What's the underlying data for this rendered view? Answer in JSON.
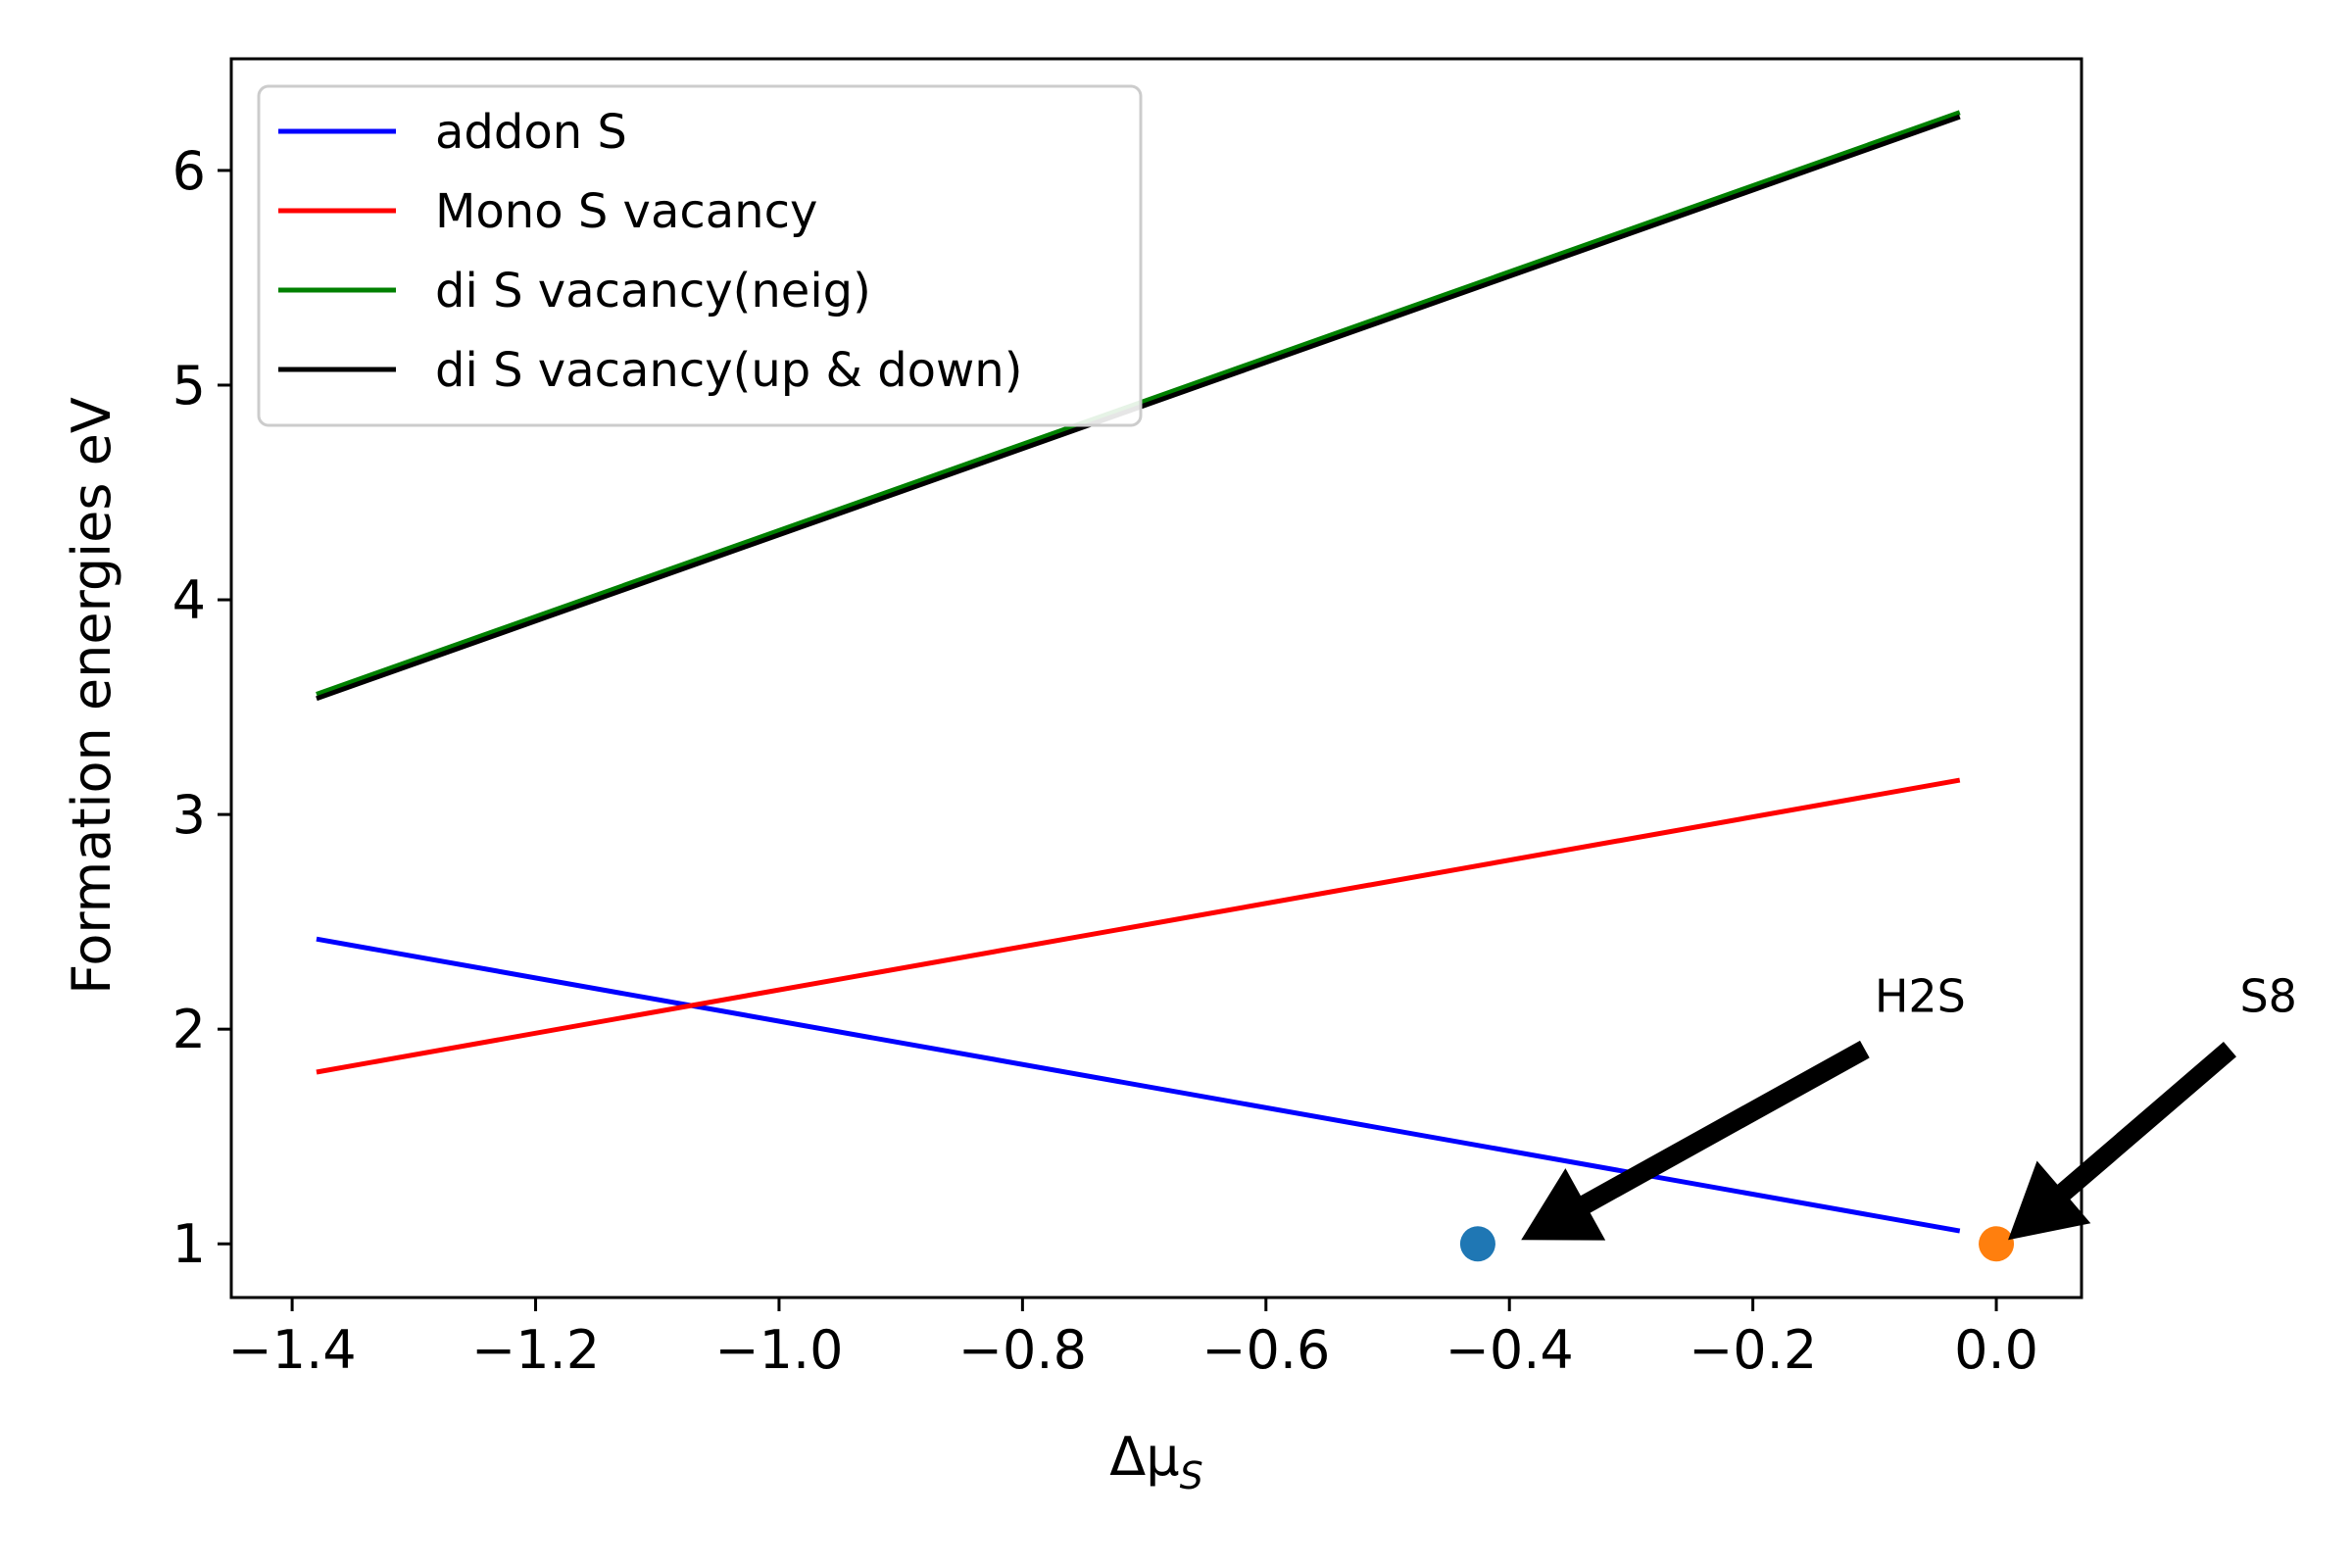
{
  "chart_data": {
    "type": "line",
    "title": "",
    "xlabel": "Δμ",
    "xlabel_subscript": "S",
    "ylabel": "Formation energies eV",
    "xlim": [
      -1.45,
      0.07
    ],
    "ylim": [
      0.75,
      6.52
    ],
    "xticks": [
      -1.4,
      -1.2,
      -1.0,
      -0.8,
      -0.6,
      -0.4,
      -0.2,
      0.0
    ],
    "xtick_labels": [
      "−1.4",
      "−1.2",
      "−1.0",
      "−0.8",
      "−0.6",
      "−0.4",
      "−0.2",
      "0.0"
    ],
    "yticks": [
      1,
      2,
      3,
      4,
      5,
      6
    ],
    "ytick_labels": [
      "1",
      "2",
      "3",
      "4",
      "5",
      "6"
    ],
    "grid": false,
    "legend_position": "top-left",
    "series": [
      {
        "name": "addon S",
        "color": "#0000ff",
        "x": [
          -1.38,
          -0.03
        ],
        "y": [
          2.42,
          1.06
        ]
      },
      {
        "name": "Mono S vacancy",
        "color": "#ff0000",
        "x": [
          -1.38,
          -0.03
        ],
        "y": [
          1.8,
          3.16
        ]
      },
      {
        "name": "di S vacancy(neig)",
        "color": "#008000",
        "x": [
          -1.38,
          -0.03
        ],
        "y": [
          3.56,
          6.27
        ]
      },
      {
        "name": "di S vacancy(up & down)",
        "color": "#000000",
        "x": [
          -1.38,
          -0.03
        ],
        "y": [
          3.54,
          6.25
        ]
      }
    ],
    "points": [
      {
        "x": -0.426,
        "y": 1.0,
        "color": "#1f77b4"
      },
      {
        "x": 0.0,
        "y": 1.0,
        "color": "#ff7f0e"
      }
    ],
    "annotations": [
      {
        "text": "H2S",
        "text_x": -0.1,
        "text_y": 2.08,
        "arrow_to_x": -0.4,
        "arrow_to_y": 1.0
      },
      {
        "text": "S8",
        "text_x": 0.2,
        "text_y": 2.08,
        "arrow_to_x": 0.0,
        "arrow_to_y": 1.0
      }
    ]
  }
}
